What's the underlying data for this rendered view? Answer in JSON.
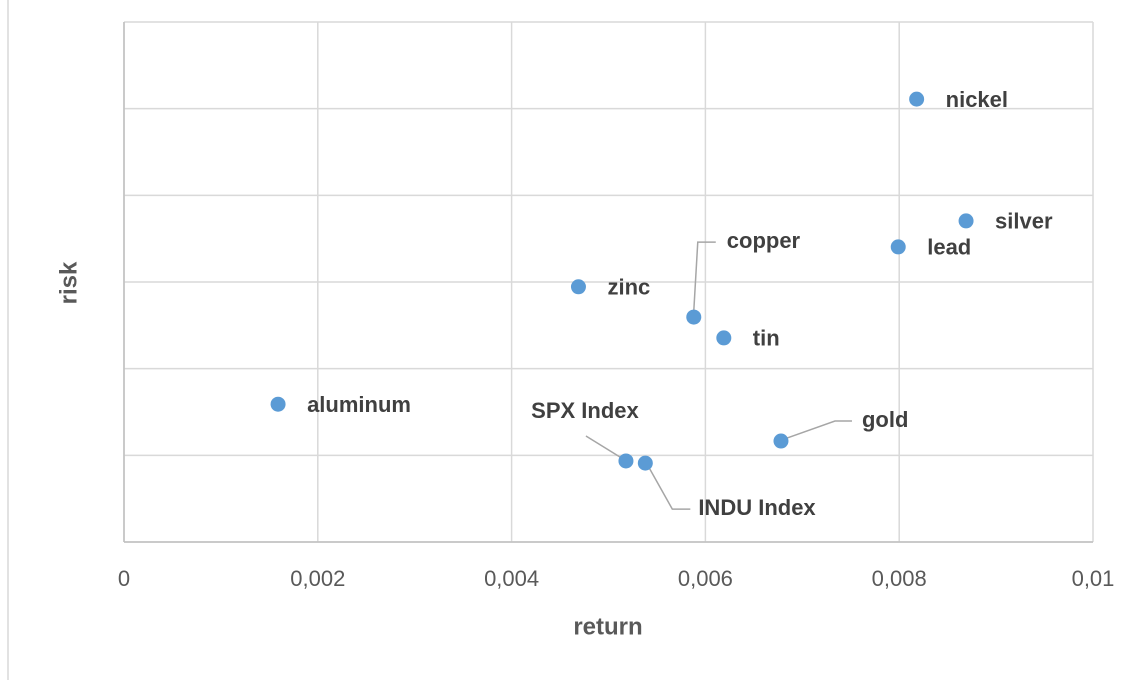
{
  "chart_data": {
    "type": "scatter",
    "x_label": "return",
    "y_label": "risk",
    "series": [
      {
        "color": "#5b9bd5",
        "labels": [
          "nickel",
          "silver",
          "lead",
          "copper",
          "zinc",
          "tin",
          "aluminum",
          "gold",
          "SPX Index",
          "INDU Index"
        ],
        "x": [
          0.00818,
          0.00869,
          0.00799,
          0.00588,
          0.00469,
          0.00619,
          0.00159,
          0.00678,
          0.00518,
          0.00538
        ],
        "values": [
          0.1022,
          0.0741,
          0.0681,
          0.0519,
          0.0589,
          0.0471,
          0.0318,
          0.0233,
          0.0187,
          0.0182
        ]
      }
    ],
    "xlim": [
      0,
      0.01
    ],
    "xticks": [
      0,
      {
        "value": 0.002,
        "label": "0,002"
      },
      {
        "value": 0.004,
        "label": "0,004"
      },
      {
        "value": 0.006,
        "label": "0,006"
      },
      {
        "value": 0.008,
        "label": "0,008"
      },
      {
        "value": 0.01,
        "label": "0,01"
      }
    ],
    "ylim": [
      0,
      0.12
    ],
    "yticks": [
      0,
      0.02,
      0.04,
      0.06,
      0.08,
      0.1,
      0.12
    ],
    "show_ytick_labels": false,
    "grid": true
  }
}
